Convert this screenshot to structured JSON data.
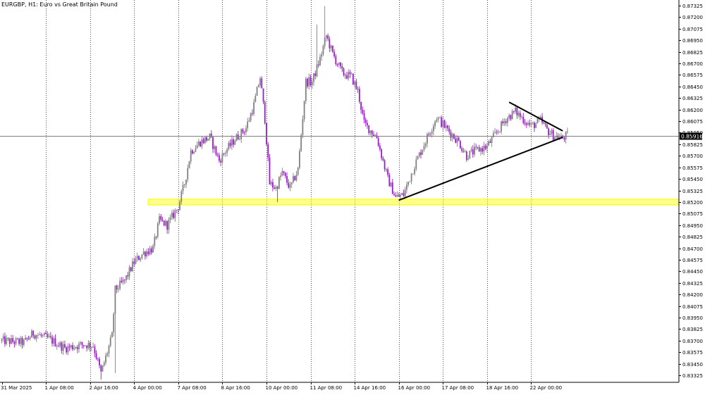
{
  "window": {
    "symbol_title": "EURGBP, H1:  Euro vs Great Britain Pound"
  },
  "colors": {
    "background": "#ffffff",
    "bull_candle": "#808080",
    "bear_candle": "#9b1bcf",
    "grid": "#000000",
    "support_zone": "#ffff00",
    "trendline": "#000000",
    "price_line": "#808080",
    "price_label_bg": "#000000",
    "price_label_text": "#ffffff"
  },
  "chart_data": {
    "type": "candlestick",
    "title": "EURGBP, H1:  Euro vs Great Britain Pound",
    "timeframe": "H1",
    "grid": "vertical-dotted",
    "ylim": [
      0.8325,
      0.8737
    ],
    "y_ticks": [
      "0.87325",
      "0.87200",
      "0.87075",
      "0.86950",
      "0.86825",
      "0.86700",
      "0.86575",
      "0.86450",
      "0.86325",
      "0.86200",
      "0.86075",
      "0.85950",
      "0.85825",
      "0.85700",
      "0.85575",
      "0.85450",
      "0.85325",
      "0.85200",
      "0.85075",
      "0.84950",
      "0.84825",
      "0.84700",
      "0.84575",
      "0.84450",
      "0.84325",
      "0.84200",
      "0.84075",
      "0.83950",
      "0.83825",
      "0.83700",
      "0.83575",
      "0.83450",
      "0.83325"
    ],
    "y_tick_values": [
      0.87325,
      0.872,
      0.87075,
      0.8695,
      0.86825,
      0.867,
      0.86575,
      0.8645,
      0.86325,
      0.862,
      0.86075,
      0.8595,
      0.85825,
      0.857,
      0.85575,
      0.8545,
      0.85325,
      0.852,
      0.85075,
      0.8495,
      0.84825,
      0.847,
      0.84575,
      0.8445,
      0.84325,
      0.842,
      0.84075,
      0.8395,
      0.83825,
      0.837,
      0.83575,
      0.8345,
      0.83325
    ],
    "x_labels": [
      "31 Mar 2025",
      "1 Apr 08:00",
      "2 Apr 16:00",
      "4 Apr 00:00",
      "7 Apr 08:00",
      "8 Apr 16:00",
      "10 Apr 00:00",
      "11 Apr 08:00",
      "14 Apr 16:00",
      "16 Apr 00:00",
      "17 Apr 08:00",
      "18 Apr 16:00",
      "22 Apr 00:00"
    ],
    "bar_count": 360,
    "label_bar_index": [
      0,
      28,
      56,
      84,
      112,
      140,
      168,
      196,
      224,
      252,
      280,
      308,
      336
    ],
    "current_price": 0.85916,
    "current_price_label": "0.85916",
    "support_zone": [
      0.8517,
      0.8523
    ],
    "trendlines": [
      {
        "from": {
          "bar": 252,
          "price": 0.8522
        },
        "to": {
          "bar": 356,
          "price": 0.859
        }
      },
      {
        "from": {
          "bar": 322,
          "price": 0.8628
        },
        "to": {
          "bar": 356,
          "price": 0.8597
        }
      }
    ],
    "path_points": [
      [
        0,
        0.837
      ],
      [
        14,
        0.8368
      ],
      [
        20,
        0.8378
      ],
      [
        30,
        0.8372
      ],
      [
        40,
        0.8362
      ],
      [
        52,
        0.8366
      ],
      [
        58,
        0.8365
      ],
      [
        63,
        0.8335
      ],
      [
        70,
        0.8375
      ],
      [
        72,
        0.8425
      ],
      [
        78,
        0.8435
      ],
      [
        84,
        0.8455
      ],
      [
        90,
        0.8465
      ],
      [
        96,
        0.847
      ],
      [
        100,
        0.85
      ],
      [
        105,
        0.8495
      ],
      [
        112,
        0.8515
      ],
      [
        116,
        0.854
      ],
      [
        120,
        0.8575
      ],
      [
        126,
        0.8585
      ],
      [
        132,
        0.859
      ],
      [
        138,
        0.8565
      ],
      [
        142,
        0.8575
      ],
      [
        148,
        0.8588
      ],
      [
        155,
        0.86
      ],
      [
        160,
        0.8625
      ],
      [
        164,
        0.8655
      ],
      [
        167,
        0.861
      ],
      [
        170,
        0.854
      ],
      [
        174,
        0.8535
      ],
      [
        178,
        0.8552
      ],
      [
        183,
        0.8535
      ],
      [
        188,
        0.8555
      ],
      [
        193,
        0.865
      ],
      [
        197,
        0.865
      ],
      [
        202,
        0.8675
      ],
      [
        206,
        0.87
      ],
      [
        210,
        0.868
      ],
      [
        216,
        0.866
      ],
      [
        222,
        0.8655
      ],
      [
        226,
        0.864
      ],
      [
        230,
        0.8605
      ],
      [
        238,
        0.859
      ],
      [
        245,
        0.8545
      ],
      [
        250,
        0.8525
      ],
      [
        255,
        0.8528
      ],
      [
        262,
        0.856
      ],
      [
        270,
        0.859
      ],
      [
        276,
        0.8612
      ],
      [
        282,
        0.86
      ],
      [
        290,
        0.8585
      ],
      [
        295,
        0.857
      ],
      [
        300,
        0.8575
      ],
      [
        308,
        0.858
      ],
      [
        314,
        0.8595
      ],
      [
        320,
        0.861
      ],
      [
        326,
        0.8618
      ],
      [
        332,
        0.8608
      ],
      [
        336,
        0.8602
      ],
      [
        342,
        0.8608
      ],
      [
        346,
        0.8598
      ],
      [
        350,
        0.8592
      ],
      [
        355,
        0.8589
      ],
      [
        359,
        0.8592
      ]
    ]
  }
}
